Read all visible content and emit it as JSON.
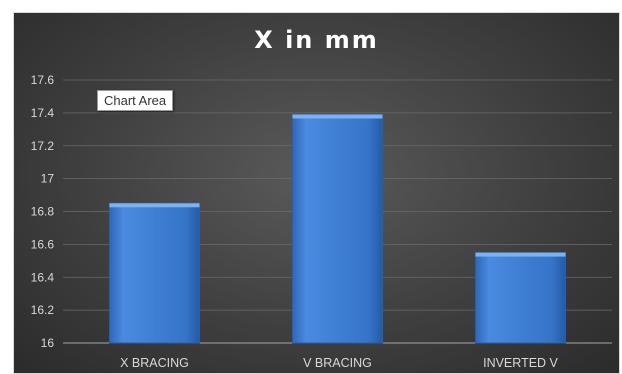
{
  "chart_data": {
    "type": "bar",
    "title": "X in mm",
    "categories": [
      "X BRACING",
      "V BRACING",
      "INVERTED V"
    ],
    "values": [
      16.85,
      17.39,
      16.55
    ],
    "ylim": [
      16,
      17.6
    ],
    "yticks": [
      "16",
      "16.2",
      "16.4",
      "16.6",
      "16.8",
      "17",
      "17.2",
      "17.4",
      "17.6"
    ],
    "grid": true,
    "legend": "none",
    "bar_color": "#3f7fd3"
  },
  "tooltip_text": "Chart Area"
}
